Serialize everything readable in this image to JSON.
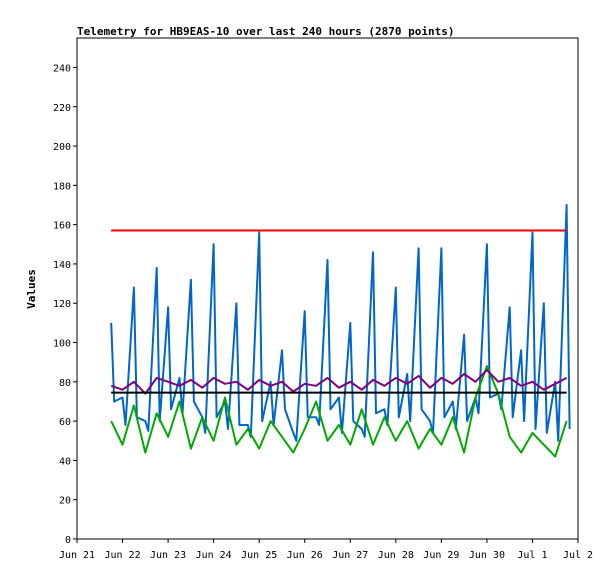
{
  "chart_data": {
    "type": "line",
    "title": "Telemetry for HB9EAS-10 over last 240 hours (2870 points)",
    "xlabel": "",
    "ylabel": "Values",
    "xlim": [
      "2024-06-21",
      "2024-07-02"
    ],
    "ylim": [
      0,
      255
    ],
    "yticks": [
      0,
      20,
      40,
      60,
      80,
      100,
      120,
      140,
      160,
      180,
      200,
      220,
      240
    ],
    "xticks": [
      {
        "date": "2024-06-21",
        "label": "Jun 21"
      },
      {
        "date": "2024-06-22",
        "label": "Jun 22"
      },
      {
        "date": "2024-06-23",
        "label": "Jun 23"
      },
      {
        "date": "2024-06-24",
        "label": "Jun 24"
      },
      {
        "date": "2024-06-25",
        "label": "Jun 25"
      },
      {
        "date": "2024-06-26",
        "label": "Jun 26"
      },
      {
        "date": "2024-06-27",
        "label": "Jun 27"
      },
      {
        "date": "2024-06-28",
        "label": "Jun 28"
      },
      {
        "date": "2024-06-29",
        "label": "Jun 29"
      },
      {
        "date": "2024-06-30",
        "label": "Jun 30"
      },
      {
        "date": "2024-07-01",
        "label": "Jul 1"
      },
      {
        "date": "2024-07-02",
        "label": "Jul 2"
      }
    ],
    "grid": false,
    "legend": "none",
    "series": [
      {
        "color": "#0066cc",
        "x": [
          "2024-06-21 18:00",
          "2024-06-22 00:00",
          "2024-06-22 06:00",
          "2024-06-22 12:00",
          "2024-06-22 18:00",
          "2024-06-23 00:00",
          "2024-06-23 06:00",
          "2024-06-23 12:00",
          "2024-06-23 18:00",
          "2024-06-24 00:00",
          "2024-06-24 06:00",
          "2024-06-24 12:00",
          "2024-06-24 18:00",
          "2024-06-25 00:00",
          "2024-06-25 06:00",
          "2024-06-25 12:00",
          "2024-06-25 18:00",
          "2024-06-26 00:00",
          "2024-06-26 06:00",
          "2024-06-26 12:00",
          "2024-06-26 18:00",
          "2024-06-27 00:00",
          "2024-06-27 06:00",
          "2024-06-27 12:00",
          "2024-06-27 18:00",
          "2024-06-28 00:00",
          "2024-06-28 06:00",
          "2024-06-28 12:00",
          "2024-06-28 18:00",
          "2024-06-29 00:00",
          "2024-06-29 06:00",
          "2024-06-29 12:00",
          "2024-06-29 18:00",
          "2024-06-30 00:00",
          "2024-06-30 06:00",
          "2024-06-30 12:00",
          "2024-06-30 18:00",
          "2024-07-01 00:00",
          "2024-07-01 06:00",
          "2024-07-01 12:00",
          "2024-07-01 18:00"
        ],
        "y": [
          110,
          72,
          128,
          60,
          138,
          118,
          82,
          132,
          62,
          150,
          70,
          120,
          58,
          156,
          80,
          96,
          54,
          116,
          62,
          142,
          72,
          110,
          56,
          146,
          66,
          128,
          84,
          148,
          60,
          148,
          70,
          104,
          72,
          150,
          74,
          118,
          96,
          156,
          120,
          80,
          170
        ],
        "y_min": [
          70,
          58,
          62,
          55,
          60,
          66,
          64,
          70,
          54,
          62,
          56,
          58,
          52,
          60,
          58,
          66,
          50,
          62,
          58,
          66,
          54,
          60,
          52,
          64,
          58,
          62,
          60,
          66,
          54,
          62,
          56,
          60,
          64,
          72,
          66,
          62,
          60,
          56,
          54,
          50,
          56
        ]
      },
      {
        "color": "#00aa00",
        "x": [
          "2024-06-21 18:00",
          "2024-06-22 00:00",
          "2024-06-22 06:00",
          "2024-06-22 12:00",
          "2024-06-22 18:00",
          "2024-06-23 00:00",
          "2024-06-23 06:00",
          "2024-06-23 12:00",
          "2024-06-23 18:00",
          "2024-06-24 00:00",
          "2024-06-24 06:00",
          "2024-06-24 12:00",
          "2024-06-24 18:00",
          "2024-06-25 00:00",
          "2024-06-25 06:00",
          "2024-06-25 12:00",
          "2024-06-25 18:00",
          "2024-06-26 00:00",
          "2024-06-26 06:00",
          "2024-06-26 12:00",
          "2024-06-26 18:00",
          "2024-06-27 00:00",
          "2024-06-27 06:00",
          "2024-06-27 12:00",
          "2024-06-27 18:00",
          "2024-06-28 00:00",
          "2024-06-28 06:00",
          "2024-06-28 12:00",
          "2024-06-28 18:00",
          "2024-06-29 00:00",
          "2024-06-29 06:00",
          "2024-06-29 12:00",
          "2024-06-29 18:00",
          "2024-06-30 00:00",
          "2024-06-30 06:00",
          "2024-06-30 12:00",
          "2024-06-30 18:00",
          "2024-07-01 00:00",
          "2024-07-01 06:00",
          "2024-07-01 12:00",
          "2024-07-01 18:00"
        ],
        "y": [
          60,
          48,
          68,
          44,
          64,
          52,
          70,
          46,
          62,
          50,
          72,
          48,
          56,
          46,
          60,
          52,
          44,
          56,
          70,
          50,
          58,
          48,
          66,
          48,
          62,
          50,
          60,
          46,
          56,
          48,
          62,
          44,
          72,
          88,
          74,
          52,
          44,
          54,
          48,
          42,
          60
        ]
      },
      {
        "color": "#800080",
        "x": [
          "2024-06-21 18:00",
          "2024-06-22 00:00",
          "2024-06-22 06:00",
          "2024-06-22 12:00",
          "2024-06-22 18:00",
          "2024-06-23 00:00",
          "2024-06-23 06:00",
          "2024-06-23 12:00",
          "2024-06-23 18:00",
          "2024-06-24 00:00",
          "2024-06-24 06:00",
          "2024-06-24 12:00",
          "2024-06-24 18:00",
          "2024-06-25 00:00",
          "2024-06-25 06:00",
          "2024-06-25 12:00",
          "2024-06-25 18:00",
          "2024-06-26 00:00",
          "2024-06-26 06:00",
          "2024-06-26 12:00",
          "2024-06-26 18:00",
          "2024-06-27 00:00",
          "2024-06-27 06:00",
          "2024-06-27 12:00",
          "2024-06-27 18:00",
          "2024-06-28 00:00",
          "2024-06-28 06:00",
          "2024-06-28 12:00",
          "2024-06-28 18:00",
          "2024-06-29 00:00",
          "2024-06-29 06:00",
          "2024-06-29 12:00",
          "2024-06-29 18:00",
          "2024-06-30 00:00",
          "2024-06-30 06:00",
          "2024-06-30 12:00",
          "2024-06-30 18:00",
          "2024-07-01 00:00",
          "2024-07-01 06:00",
          "2024-07-01 12:00",
          "2024-07-01 18:00"
        ],
        "y": [
          78,
          76,
          80,
          74,
          82,
          80,
          78,
          81,
          77,
          82,
          79,
          80,
          76,
          81,
          78,
          80,
          75,
          79,
          78,
          82,
          77,
          80,
          76,
          81,
          78,
          82,
          79,
          83,
          77,
          82,
          79,
          84,
          80,
          86,
          80,
          82,
          78,
          80,
          76,
          79,
          82
        ]
      },
      {
        "color": "#000000",
        "x": [
          "2024-06-21 18:00",
          "2024-07-01 18:00"
        ],
        "y": [
          74.5,
          74.5
        ]
      },
      {
        "color": "#ee0000",
        "x": [
          "2024-06-21 18:00",
          "2024-07-01 18:00"
        ],
        "y": [
          157,
          157
        ]
      }
    ]
  }
}
